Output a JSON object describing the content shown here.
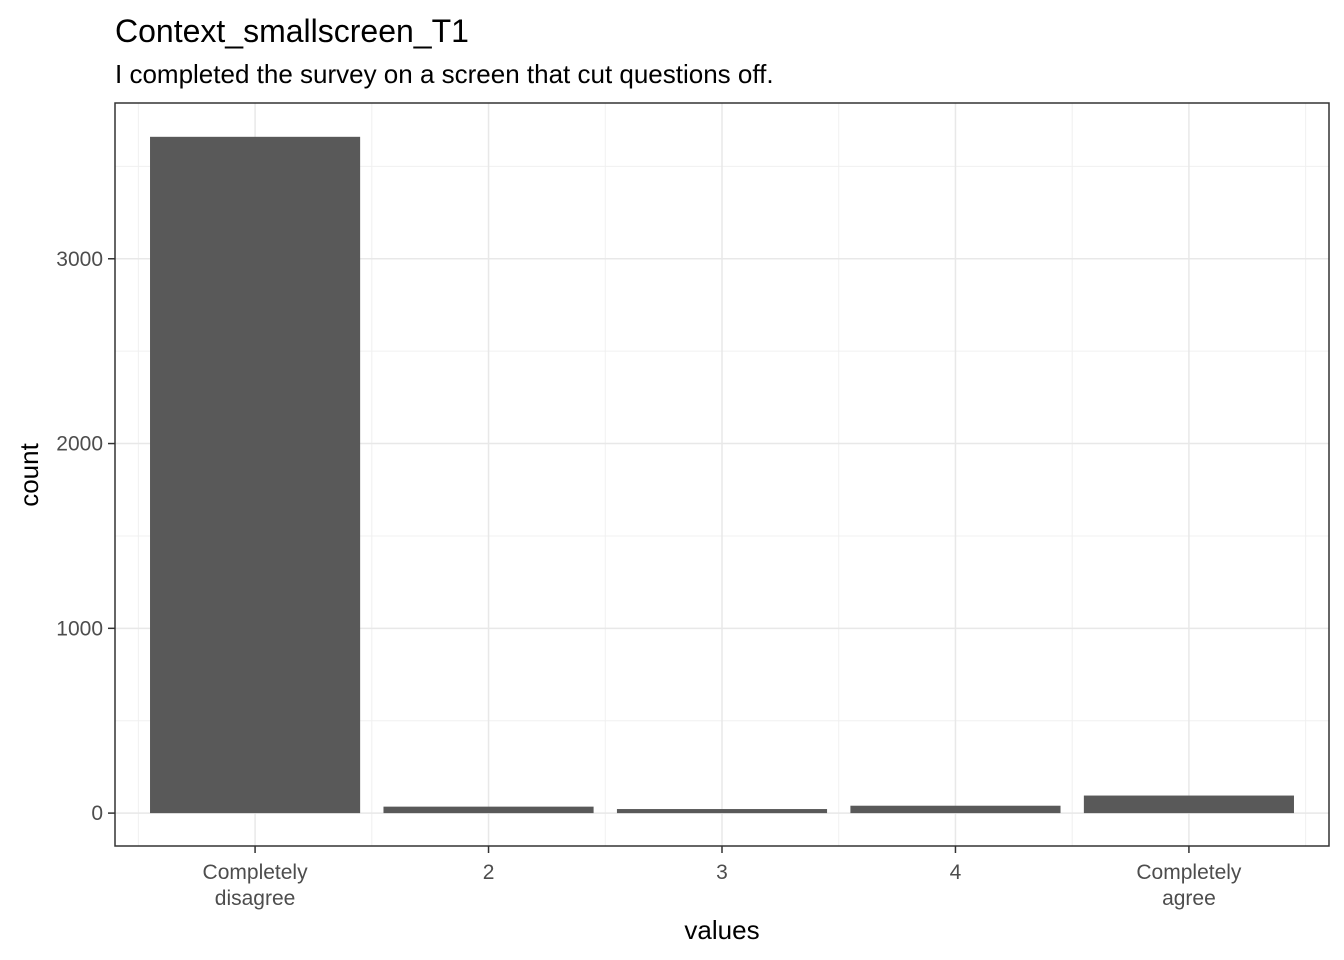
{
  "chart_data": {
    "type": "bar",
    "title": "Context_smallscreen_T1",
    "subtitle": "I completed the survey on a screen that cut questions off.",
    "xlabel": "values",
    "ylabel": "count",
    "categories": [
      [
        "Completely",
        "disagree"
      ],
      [
        "2"
      ],
      [
        "3"
      ],
      [
        "4"
      ],
      [
        "Completely",
        "agree"
      ]
    ],
    "values": [
      3660,
      35,
      22,
      40,
      95
    ],
    "ylim": [
      -178,
      3843
    ],
    "yticks": [
      0,
      1000,
      2000,
      3000
    ],
    "grid": true,
    "bar_color": "#595959"
  }
}
